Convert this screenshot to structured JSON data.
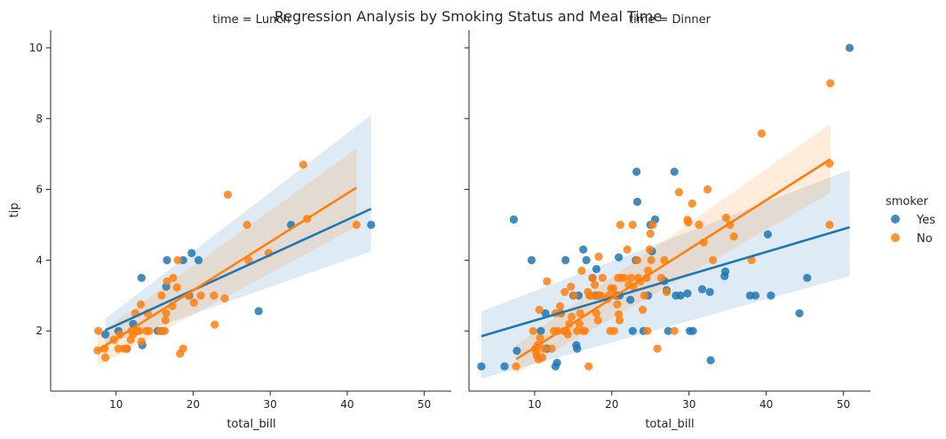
{
  "figure": {
    "suptitle": "Regression Analysis by Smoking Status and Meal Time"
  },
  "legend": {
    "title": "smoker",
    "entries": [
      "Yes",
      "No"
    ]
  },
  "colors": {
    "Yes": "#1f77b4",
    "No": "#ff7f0e",
    "axis": "#262626"
  },
  "chart_data": [
    {
      "type": "scatter",
      "title": "time = Lunch",
      "xlabel": "total_bill",
      "ylabel": "tip",
      "xlim": [
        1.5,
        53.5
      ],
      "ylim": [
        0.3,
        10.5
      ],
      "xticks": [
        10,
        20,
        30,
        40,
        50
      ],
      "yticks": [
        2,
        4,
        6,
        8,
        10
      ],
      "series": [
        {
          "name": "Yes",
          "points": [
            [
              8.6,
              1.9
            ],
            [
              10.3,
              2.0
            ],
            [
              11.4,
              1.5
            ],
            [
              12.2,
              2.2
            ],
            [
              13.3,
              3.5
            ],
            [
              13.4,
              1.6
            ],
            [
              15.4,
              2.0
            ],
            [
              16.0,
              2.0
            ],
            [
              16.5,
              3.25
            ],
            [
              16.6,
              4.0
            ],
            [
              18.7,
              4.0
            ],
            [
              19.5,
              3.0
            ],
            [
              19.8,
              4.2
            ],
            [
              20.7,
              4.0
            ],
            [
              28.5,
              2.56
            ],
            [
              32.7,
              5.0
            ],
            [
              43.1,
              5.0
            ]
          ],
          "regression": {
            "x": [
              8.6,
              43.1
            ],
            "y": [
              2.02,
              5.45
            ]
          },
          "ci_upper": [
            2.35,
            8.1
          ],
          "ci_lower": [
            1.6,
            4.25
          ]
        },
        {
          "name": "No",
          "points": [
            [
              7.6,
              1.45
            ],
            [
              7.7,
              2.0
            ],
            [
              8.5,
              1.5
            ],
            [
              8.6,
              1.25
            ],
            [
              9.7,
              1.75
            ],
            [
              10.3,
              1.5
            ],
            [
              10.5,
              1.9
            ],
            [
              11.0,
              1.5
            ],
            [
              11.4,
              1.5
            ],
            [
              11.9,
              1.75
            ],
            [
              12.0,
              2.0
            ],
            [
              12.2,
              1.9
            ],
            [
              12.5,
              2.5
            ],
            [
              12.7,
              2.0
            ],
            [
              13.0,
              2.0
            ],
            [
              13.2,
              2.75
            ],
            [
              13.3,
              1.7
            ],
            [
              13.9,
              2.0
            ],
            [
              14.1,
              2.5
            ],
            [
              14.3,
              2.0
            ],
            [
              15.7,
              2.0
            ],
            [
              15.9,
              3.0
            ],
            [
              16.3,
              2.0
            ],
            [
              16.4,
              2.3
            ],
            [
              16.5,
              2.5
            ],
            [
              16.6,
              3.4
            ],
            [
              17.3,
              2.7
            ],
            [
              17.4,
              3.5
            ],
            [
              17.9,
              3.23
            ],
            [
              18.0,
              4.0
            ],
            [
              18.3,
              1.36
            ],
            [
              18.7,
              1.5
            ],
            [
              19.4,
              3.0
            ],
            [
              20.1,
              2.8
            ],
            [
              21.0,
              3.0
            ],
            [
              22.7,
              3.0
            ],
            [
              22.8,
              2.18
            ],
            [
              24.1,
              2.92
            ],
            [
              24.5,
              5.85
            ],
            [
              27.0,
              5.0
            ],
            [
              27.2,
              4.0
            ],
            [
              29.8,
              4.2
            ],
            [
              34.3,
              6.7
            ],
            [
              34.8,
              5.17
            ],
            [
              41.2,
              5.0
            ]
          ],
          "regression": {
            "x": [
              7.6,
              41.2
            ],
            "y": [
              1.45,
              6.05
            ]
          },
          "ci_upper": [
            1.9,
            7.15
          ],
          "ci_lower": [
            1.0,
            4.95
          ]
        }
      ]
    },
    {
      "type": "scatter",
      "title": "time = Dinner",
      "xlabel": "total_bill",
      "ylabel": "tip",
      "xlim": [
        1.5,
        53.5
      ],
      "ylim": [
        0.3,
        10.5
      ],
      "xticks": [
        10,
        20,
        30,
        40,
        50
      ],
      "yticks": [
        2,
        4,
        6,
        8,
        10
      ],
      "series": [
        {
          "name": "Yes",
          "points": [
            [
              3.1,
              1.0
            ],
            [
              6.1,
              1.0
            ],
            [
              7.3,
              5.15
            ],
            [
              7.7,
              1.44
            ],
            [
              9.6,
              4.0
            ],
            [
              10.8,
              2.0
            ],
            [
              11.4,
              2.5
            ],
            [
              11.6,
              1.5
            ],
            [
              12.7,
              1.0
            ],
            [
              12.9,
              1.1
            ],
            [
              13.4,
              2.5
            ],
            [
              14.0,
              4.0
            ],
            [
              15.0,
              3.0
            ],
            [
              15.4,
              1.6
            ],
            [
              15.5,
              1.5
            ],
            [
              15.7,
              3.0
            ],
            [
              16.3,
              4.3
            ],
            [
              16.7,
              4.0
            ],
            [
              17.5,
              3.5
            ],
            [
              17.9,
              3.0
            ],
            [
              18.0,
              3.75
            ],
            [
              18.3,
              3.0
            ],
            [
              20.6,
              3.0
            ],
            [
              20.9,
              4.08
            ],
            [
              21.0,
              3.0
            ],
            [
              22.4,
              2.88
            ],
            [
              22.7,
              2.0
            ],
            [
              23.1,
              4.0
            ],
            [
              23.2,
              6.5
            ],
            [
              23.3,
              5.65
            ],
            [
              24.1,
              2.0
            ],
            [
              24.7,
              3.0
            ],
            [
              25.0,
              5.0
            ],
            [
              25.2,
              4.25
            ],
            [
              25.6,
              5.15
            ],
            [
              26.8,
              3.41
            ],
            [
              27.1,
              3.15
            ],
            [
              27.3,
              2.0
            ],
            [
              28.1,
              6.5
            ],
            [
              28.3,
              3.0
            ],
            [
              28.9,
              3.0
            ],
            [
              29.8,
              3.06
            ],
            [
              30.1,
              2.0
            ],
            [
              30.5,
              2.0
            ],
            [
              31.7,
              3.18
            ],
            [
              32.7,
              3.1
            ],
            [
              32.8,
              1.17
            ],
            [
              34.6,
              3.55
            ],
            [
              34.7,
              3.68
            ],
            [
              37.9,
              3.0
            ],
            [
              38.6,
              3.0
            ],
            [
              40.2,
              4.73
            ],
            [
              40.6,
              3.0
            ],
            [
              44.3,
              2.5
            ],
            [
              45.3,
              3.5
            ],
            [
              50.8,
              10.0
            ]
          ],
          "regression": {
            "x": [
              3.1,
              50.8
            ],
            "y": [
              1.85,
              4.93
            ]
          },
          "ci_upper": [
            2.55,
            6.55
          ],
          "ci_lower": [
            0.65,
            3.55
          ]
        },
        {
          "name": "No",
          "points": [
            [
              7.6,
              1.0
            ],
            [
              9.8,
              2.0
            ],
            [
              10.1,
              1.5
            ],
            [
              10.2,
              1.4
            ],
            [
              10.3,
              1.3
            ],
            [
              10.4,
              1.6
            ],
            [
              10.5,
              1.2
            ],
            [
              10.6,
              2.6
            ],
            [
              10.7,
              1.8
            ],
            [
              11.0,
              1.25
            ],
            [
              11.2,
              1.5
            ],
            [
              11.6,
              3.4
            ],
            [
              12.2,
              1.5
            ],
            [
              12.5,
              2.0
            ],
            [
              12.7,
              2.5
            ],
            [
              13.0,
              2.0
            ],
            [
              13.3,
              2.7
            ],
            [
              13.4,
              2.5
            ],
            [
              13.8,
              2.0
            ],
            [
              13.9,
              3.1
            ],
            [
              14.1,
              2.0
            ],
            [
              14.3,
              1.9
            ],
            [
              14.5,
              2.2
            ],
            [
              14.7,
              3.25
            ],
            [
              14.8,
              2.4
            ],
            [
              15.1,
              3.0
            ],
            [
              15.5,
              2.0
            ],
            [
              15.8,
              2.2
            ],
            [
              15.9,
              2.5
            ],
            [
              16.1,
              3.7
            ],
            [
              16.3,
              2.0
            ],
            [
              16.5,
              2.0
            ],
            [
              16.9,
              3.1
            ],
            [
              17.0,
              1.0
            ],
            [
              17.1,
              3.0
            ],
            [
              17.3,
              3.0
            ],
            [
              17.5,
              3.5
            ],
            [
              17.8,
              3.3
            ],
            [
              18.0,
              2.5
            ],
            [
              18.1,
              3.0
            ],
            [
              18.2,
              2.3
            ],
            [
              18.3,
              4.1
            ],
            [
              18.6,
              3.0
            ],
            [
              18.8,
              3.5
            ],
            [
              19.4,
              2.9
            ],
            [
              19.6,
              3.0
            ],
            [
              19.8,
              2.0
            ],
            [
              19.9,
              3.2
            ],
            [
              20.2,
              3.2
            ],
            [
              20.3,
              2.0
            ],
            [
              20.5,
              3.0
            ],
            [
              20.7,
              2.75
            ],
            [
              20.8,
              3.5
            ],
            [
              20.9,
              2.47
            ],
            [
              21.0,
              2.3
            ],
            [
              21.1,
              5.0
            ],
            [
              21.2,
              3.5
            ],
            [
              21.6,
              3.5
            ],
            [
              22.0,
              4.3
            ],
            [
              22.2,
              3.3
            ],
            [
              22.5,
              3.5
            ],
            [
              22.7,
              5.0
            ],
            [
              22.8,
              3.25
            ],
            [
              23.3,
              4.0
            ],
            [
              23.4,
              3.5
            ],
            [
              23.7,
              3.4
            ],
            [
              24.0,
              2.6
            ],
            [
              24.2,
              3.0
            ],
            [
              24.5,
              3.5
            ],
            [
              24.6,
              2.0
            ],
            [
              24.7,
              3.71
            ],
            [
              24.9,
              4.3
            ],
            [
              25.0,
              4.75
            ],
            [
              25.1,
              4.0
            ],
            [
              25.3,
              5.0
            ],
            [
              25.9,
              1.5
            ],
            [
              26.4,
              3.5
            ],
            [
              26.8,
              4.0
            ],
            [
              27.1,
              3.1
            ],
            [
              28.1,
              2.0
            ],
            [
              28.7,
              5.92
            ],
            [
              29.8,
              5.14
            ],
            [
              29.9,
              5.07
            ],
            [
              30.4,
              5.6
            ],
            [
              31.3,
              5.0
            ],
            [
              31.9,
              4.5
            ],
            [
              32.4,
              6.0
            ],
            [
              33.1,
              4.0
            ],
            [
              34.8,
              5.2
            ],
            [
              35.3,
              5.0
            ],
            [
              35.8,
              4.67
            ],
            [
              38.1,
              4.0
            ],
            [
              39.4,
              7.58
            ],
            [
              48.2,
              5.0
            ],
            [
              48.2,
              6.73
            ],
            [
              48.3,
              9.0
            ]
          ],
          "regression": {
            "x": [
              7.6,
              48.3
            ],
            "y": [
              1.2,
              6.85
            ]
          },
          "ci_upper": [
            1.6,
            7.85
          ],
          "ci_lower": [
            0.8,
            5.9
          ]
        }
      ]
    }
  ]
}
